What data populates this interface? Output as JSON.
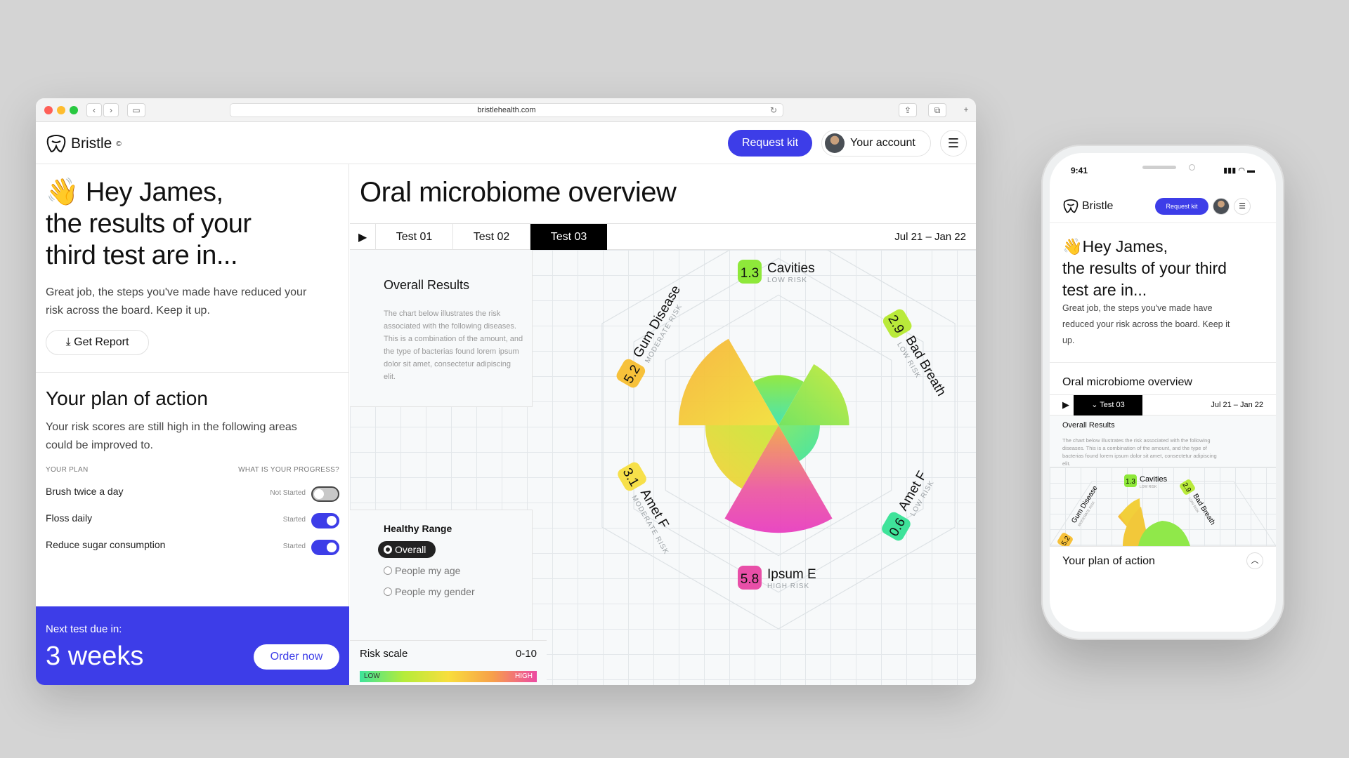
{
  "browser": {
    "url": "bristlehealth.com"
  },
  "header": {
    "brand": "Bristle",
    "brand_mark": "©",
    "request_kit": "Request kit",
    "account": "Your account"
  },
  "greeting": {
    "emoji": "👋",
    "line1": "Hey James,",
    "line2": "the results of your",
    "line3": "third test are in...",
    "intro": "Great job, the steps you've made have reduced your risk across the board. Keep it up.",
    "report_button": "Get Report"
  },
  "plan": {
    "title": "Your plan of action",
    "subtitle": "Your risk scores are still high in the following areas could be improved to.",
    "col_plan": "YOUR PLAN",
    "col_progress": "WHAT IS YOUR PROGRESS?",
    "items": [
      {
        "label": "Brush twice a day",
        "status": "Not Started",
        "on": false
      },
      {
        "label": "Floss daily",
        "status": "Started",
        "on": true
      },
      {
        "label": "Reduce sugar consumption",
        "status": "Started",
        "on": true
      }
    ]
  },
  "next_test": {
    "label": "Next test due in:",
    "value": "3 weeks",
    "button": "Order now"
  },
  "overview": {
    "title": "Oral microbiome overview",
    "tabs": [
      "Test 01",
      "Test 02",
      "Test 03"
    ],
    "active_tab": 2,
    "date_range": "Jul 21 – Jan 22",
    "overall_title": "Overall Results",
    "overall_desc": "The chart below illustrates the risk associated with the following diseases. This is a combination of the amount, and the type of bacterias found lorem ipsum dolor sit amet, consectetur adipiscing elit.",
    "healthy_title": "Healthy Range",
    "healthy_options": [
      "Overall",
      "People my age",
      "People my gender"
    ],
    "healthy_selected": 0,
    "scale_title": "Risk scale",
    "scale_range": "0-10",
    "scale_low": "LOW",
    "scale_high": "HIGH"
  },
  "chart_data": {
    "type": "radar",
    "categories": [
      "Cavities",
      "Bad Breath",
      "Amet F",
      "Ipsum E",
      "Amet F",
      "Gum Disease"
    ],
    "values": [
      1.3,
      2.9,
      0.6,
      5.8,
      3.1,
      5.2
    ],
    "risk_labels": [
      "LOW RISK",
      "LOW RISK",
      "LOW RISK",
      "HIGH RISK",
      "MODERATE RISK",
      "MODERATE RISK"
    ],
    "score_labels": [
      "1.3",
      "2.9",
      "0.6",
      "5.8",
      "3.1",
      "5.2"
    ],
    "badge_colors": [
      "#8ee83a",
      "#b9ea3a",
      "#3fe39a",
      "#e84fa8",
      "#f7e04a",
      "#f7c13a"
    ],
    "ylim": [
      0,
      10
    ]
  },
  "phone": {
    "time": "9:41",
    "brand": "Bristle",
    "request_kit": "Request kit",
    "hey": "Hey James,",
    "hey2": "the results of your third test are in...",
    "intro": "Great job, the steps you've made have reduced your risk across the board. Keep it up.",
    "overview_title": "Oral microbiome overview",
    "tab": "Test 03",
    "date_range": "Jul 21 – Jan 22",
    "overall_title": "Overall Results",
    "overall_desc": "The chart below illustrates the risk associated with the following diseases. This is a combination of the amount, and the type of bacterias found lorem ipsum dolor sit amet, consectetur adipiscing elit.",
    "chart_labels": [
      "Cavities",
      "Gum Disease",
      "Bad Breath"
    ],
    "chart_scores": [
      "1.3",
      "5.2",
      "2.9"
    ],
    "chart_risks": [
      "LOW RISK",
      "MODERATE RISK",
      "LOW RISK"
    ],
    "plan_title": "Your plan of action"
  }
}
